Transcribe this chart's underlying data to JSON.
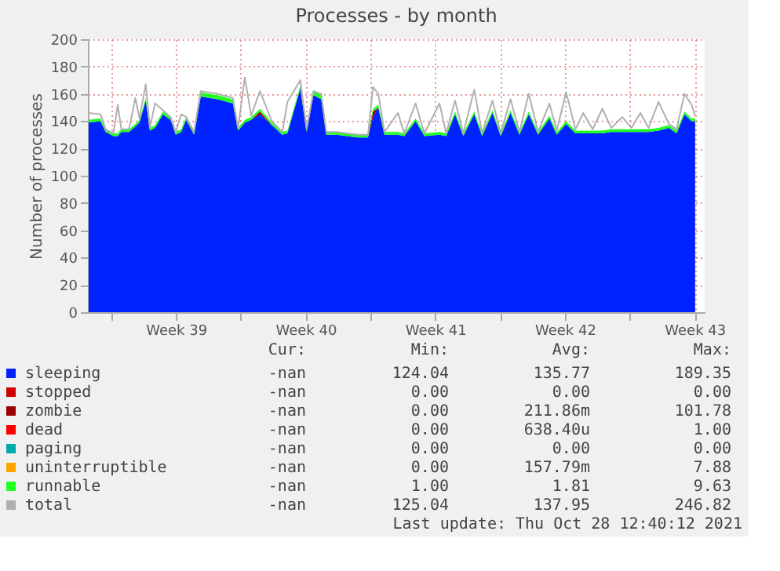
{
  "chart_data": {
    "type": "area",
    "stacked": true,
    "title": "Processes - by month",
    "ylabel": "Number of processes",
    "x": [
      "2021-09-25T19:00",
      "2021-09-26T10:30",
      "2021-09-26T17:00",
      "2021-09-27T03:00",
      "2021-09-27T08:40",
      "2021-09-27T13:20",
      "2021-09-27T23:20",
      "2021-09-28T07:30",
      "2021-09-28T12:50",
      "2021-09-28T21:00",
      "2021-09-29T02:20",
      "2021-09-29T09:00",
      "2021-09-29T19:10",
      "2021-09-30T05:10",
      "2021-09-30T11:50",
      "2021-09-30T18:50",
      "2021-10-01T01:20",
      "2021-10-01T11:30",
      "2021-10-01T20:10",
      "2021-10-02T17:40",
      "2021-10-03T13:50",
      "2021-10-03T20:30",
      "2021-10-04T05:20",
      "2021-10-04T13:30",
      "2021-10-05T00:50",
      "2021-10-05T16:20",
      "2021-10-06T05:50",
      "2021-10-06T12:30",
      "2021-10-07T05:10",
      "2021-10-07T13:20",
      "2021-10-07T22:10",
      "2021-10-08T08:20",
      "2021-10-08T14:50",
      "2021-10-09T04:20",
      "2021-10-10T07:20",
      "2021-10-10T20:50",
      "2021-10-11T03:20",
      "2021-10-11T10:10",
      "2021-10-11T18:10",
      "2021-10-12T11:40",
      "2021-10-12T19:50",
      "2021-10-13T10:30",
      "2021-10-13T22:00",
      "2021-10-14T17:30",
      "2021-10-15T02:10",
      "2021-10-15T13:40",
      "2021-10-16T00:20",
      "2021-10-16T14:30",
      "2021-10-17T00:40",
      "2021-10-17T14:10",
      "2021-10-18T00:50",
      "2021-10-18T13:30",
      "2021-10-19T01:00",
      "2021-10-19T13:10",
      "2021-10-20T01:10",
      "2021-10-20T15:50",
      "2021-10-21T01:20",
      "2021-10-21T13:30",
      "2021-10-22T01:40",
      "2021-10-22T11:40",
      "2021-10-22T23:50",
      "2021-10-23T12:30",
      "2021-10-24T00:00",
      "2021-10-24T14:10",
      "2021-10-25T02:10",
      "2021-10-25T13:40",
      "2021-10-26T00:20",
      "2021-10-26T13:10",
      "2021-10-27T02:40",
      "2021-10-27T12:40",
      "2021-10-27T22:50",
      "2021-10-28T08:00",
      "2021-10-28T12:40"
    ],
    "series": [
      {
        "name": "sleeping",
        "color": "#0022ff",
        "values": [
          139,
          140,
          132,
          129,
          129,
          132,
          132,
          136,
          139,
          155,
          133,
          135,
          145,
          141,
          130,
          132,
          141,
          130,
          158,
          156,
          153,
          133,
          139,
          141,
          145,
          137,
          130,
          131,
          164,
          132,
          159,
          156,
          130,
          130,
          128,
          128,
          143,
          150,
          130,
          130,
          129,
          140,
          129,
          130,
          129,
          145,
          129,
          145,
          129,
          146,
          129,
          146,
          130,
          145,
          130,
          142,
          130,
          138,
          131,
          131,
          131,
          131,
          132,
          132,
          132,
          132,
          132,
          133,
          135,
          131,
          145,
          140,
          140
        ]
      },
      {
        "name": "stopped",
        "color": "#cc0000",
        "values": [
          null,
          null,
          null,
          null,
          null,
          null,
          null,
          null,
          null,
          null,
          null,
          null,
          null,
          null,
          null,
          null,
          null,
          null,
          null,
          null,
          null,
          null,
          null,
          null,
          null,
          null,
          null,
          null,
          null,
          null,
          null,
          null,
          null,
          null,
          null,
          null,
          null,
          null,
          null,
          null,
          null,
          null,
          null,
          null,
          null,
          null,
          null,
          null,
          null,
          null,
          null,
          null,
          null,
          null,
          null,
          null,
          null,
          null,
          null,
          null,
          null,
          null,
          null,
          null,
          null,
          null,
          null,
          null,
          null,
          null,
          null,
          null,
          null
        ]
      },
      {
        "name": "zombie",
        "color": "#990000",
        "values": [
          0,
          0,
          0,
          0,
          0,
          0,
          0,
          0,
          0,
          0,
          0,
          0,
          0,
          0,
          0,
          0,
          0,
          0,
          0,
          0,
          0,
          0,
          0,
          0,
          2,
          0,
          0,
          0,
          0,
          0,
          0,
          0,
          0,
          0,
          0,
          0,
          4,
          0,
          0,
          0,
          0,
          0,
          0,
          0,
          0,
          0,
          0,
          0,
          0,
          0,
          0,
          0,
          0,
          0,
          0,
          0,
          0,
          0,
          0,
          0,
          0,
          0,
          0,
          0,
          0,
          0,
          0,
          0,
          0,
          0,
          0,
          0,
          0
        ]
      },
      {
        "name": "dead",
        "color": "#ff0000",
        "values": [
          null,
          null,
          null,
          null,
          null,
          null,
          null,
          null,
          null,
          null,
          null,
          null,
          null,
          null,
          null,
          null,
          null,
          null,
          null,
          null,
          null,
          null,
          null,
          null,
          null,
          null,
          null,
          null,
          null,
          null,
          null,
          null,
          null,
          null,
          null,
          null,
          null,
          null,
          null,
          null,
          null,
          null,
          null,
          null,
          null,
          null,
          null,
          null,
          null,
          null,
          null,
          null,
          null,
          null,
          null,
          null,
          null,
          null,
          null,
          null,
          null,
          null,
          null,
          null,
          null,
          null,
          null,
          null,
          null,
          null,
          null,
          null,
          null
        ]
      },
      {
        "name": "paging",
        "color": "#00aaaa",
        "values": [
          null,
          null,
          null,
          null,
          null,
          null,
          null,
          null,
          null,
          null,
          null,
          null,
          null,
          null,
          null,
          null,
          null,
          null,
          null,
          null,
          null,
          null,
          null,
          null,
          null,
          null,
          null,
          null,
          null,
          null,
          null,
          null,
          null,
          null,
          null,
          null,
          null,
          null,
          null,
          null,
          null,
          null,
          null,
          null,
          null,
          null,
          null,
          null,
          null,
          null,
          null,
          null,
          null,
          null,
          null,
          null,
          null,
          null,
          null,
          null,
          null,
          null,
          null,
          null,
          null,
          null,
          null,
          null,
          null,
          null,
          null,
          null,
          null
        ]
      },
      {
        "name": "uninterruptible",
        "color": "#ffa500",
        "values": [
          null,
          null,
          null,
          null,
          null,
          null,
          null,
          null,
          null,
          null,
          null,
          null,
          null,
          null,
          null,
          null,
          null,
          null,
          null,
          null,
          null,
          null,
          null,
          null,
          null,
          null,
          null,
          null,
          null,
          null,
          null,
          null,
          null,
          null,
          null,
          null,
          null,
          null,
          null,
          null,
          null,
          null,
          null,
          null,
          null,
          null,
          null,
          null,
          null,
          null,
          null,
          null,
          null,
          null,
          null,
          null,
          null,
          null,
          null,
          null,
          null,
          null,
          null,
          null,
          null,
          null,
          null,
          null,
          null,
          null,
          null,
          null,
          null
        ]
      },
      {
        "name": "runnable",
        "color": "#22ff22",
        "values": [
          2,
          2,
          2,
          2,
          2,
          2,
          2,
          2,
          2,
          2,
          2,
          2,
          2,
          2,
          2,
          2,
          2,
          2,
          3,
          3,
          3,
          2,
          2,
          2,
          2,
          2,
          2,
          2,
          2,
          2,
          3,
          3,
          2,
          2,
          2,
          2,
          2,
          2,
          2,
          2,
          2,
          2,
          2,
          2,
          2,
          2,
          2,
          2,
          2,
          2,
          2,
          2,
          2,
          2,
          2,
          2,
          2,
          2,
          2,
          2,
          2,
          2,
          2,
          2,
          2,
          2,
          2,
          2,
          2,
          2,
          2,
          2,
          2
        ]
      },
      {
        "name": "total",
        "color": "#b0b0b0",
        "type": "line",
        "values": [
          146,
          145,
          134,
          131,
          152,
          134,
          134,
          157,
          142,
          167,
          135,
          153,
          148,
          143,
          132,
          145,
          143,
          132,
          162,
          160,
          157,
          135,
          172,
          144,
          162,
          140,
          132,
          154,
          170,
          134,
          162,
          160,
          132,
          132,
          130,
          130,
          165,
          160,
          132,
          146,
          131,
          153,
          131,
          153,
          131,
          155,
          131,
          163,
          131,
          155,
          131,
          156,
          132,
          160,
          132,
          153,
          133,
          161,
          134,
          146,
          134,
          149,
          135,
          143,
          135,
          146,
          135,
          154,
          138,
          134,
          160,
          152,
          144
        ]
      }
    ],
    "xlim": [
      "2021-09-25T18:00",
      "2021-10-29T01:00"
    ],
    "xticks": [
      {
        "value": "2021-09-27T00:00",
        "label": null
      },
      {
        "value": "2021-09-30T12:00",
        "label": "Week 39"
      },
      {
        "value": "2021-10-04T00:00",
        "label": null
      },
      {
        "value": "2021-10-07T12:00",
        "label": "Week 40"
      },
      {
        "value": "2021-10-11T00:00",
        "label": null
      },
      {
        "value": "2021-10-14T12:00",
        "label": "Week 41"
      },
      {
        "value": "2021-10-18T00:00",
        "label": null
      },
      {
        "value": "2021-10-21T12:00",
        "label": "Week 42"
      },
      {
        "value": "2021-10-25T00:00",
        "label": null
      },
      {
        "value": "2021-10-28T12:00",
        "label": "Week 43"
      }
    ],
    "ylim": [
      0,
      200
    ],
    "yticks": [
      0,
      20,
      40,
      60,
      80,
      100,
      120,
      140,
      160,
      180,
      200
    ],
    "grid": true,
    "legend": "bottom",
    "annotations": [
      "Cur:",
      "Min:",
      "Avg:",
      "Max:",
      "-nan",
      "124.04",
      "135.77",
      "189.35",
      "-nan",
      "0.00",
      "0.00",
      "0.00",
      "-nan",
      "0.00",
      "211.86m",
      "101.78",
      "-nan",
      "0.00",
      "638.40u",
      "1.00",
      "-nan",
      "0.00",
      "0.00",
      "0.00",
      "-nan",
      "0.00",
      "157.79m",
      "7.88",
      "-nan",
      "1.00",
      "1.81",
      "9.63",
      "-nan",
      "125.04",
      "137.95",
      "246.82",
      "Last update: Thu Oct 28 12:40:12 2021"
    ]
  }
}
